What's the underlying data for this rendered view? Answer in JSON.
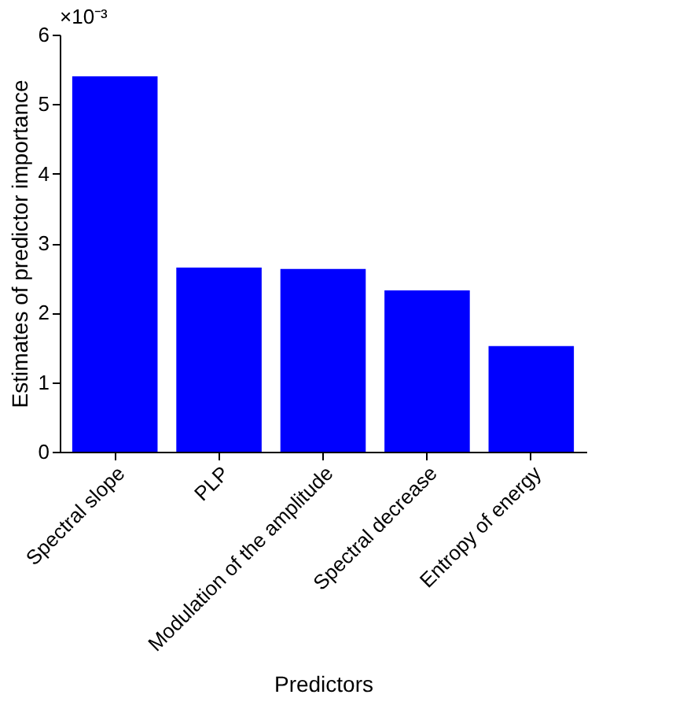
{
  "chart_data": {
    "type": "bar",
    "xlabel": "Predictors",
    "ylabel": "Estimates of predictor importance",
    "categories": [
      "Spectral slope",
      "PLP",
      "Modulation of the amplitude",
      "Spectral decrease",
      "Entropy of energy"
    ],
    "values": [
      5.4,
      2.65,
      2.63,
      2.32,
      1.52
    ],
    "color": "#0000ff",
    "ylim": [
      0,
      6
    ],
    "yticks": [
      0,
      1,
      2,
      3,
      4,
      5,
      6
    ],
    "annotations": [
      "×10⁻³"
    ],
    "grid": false
  }
}
